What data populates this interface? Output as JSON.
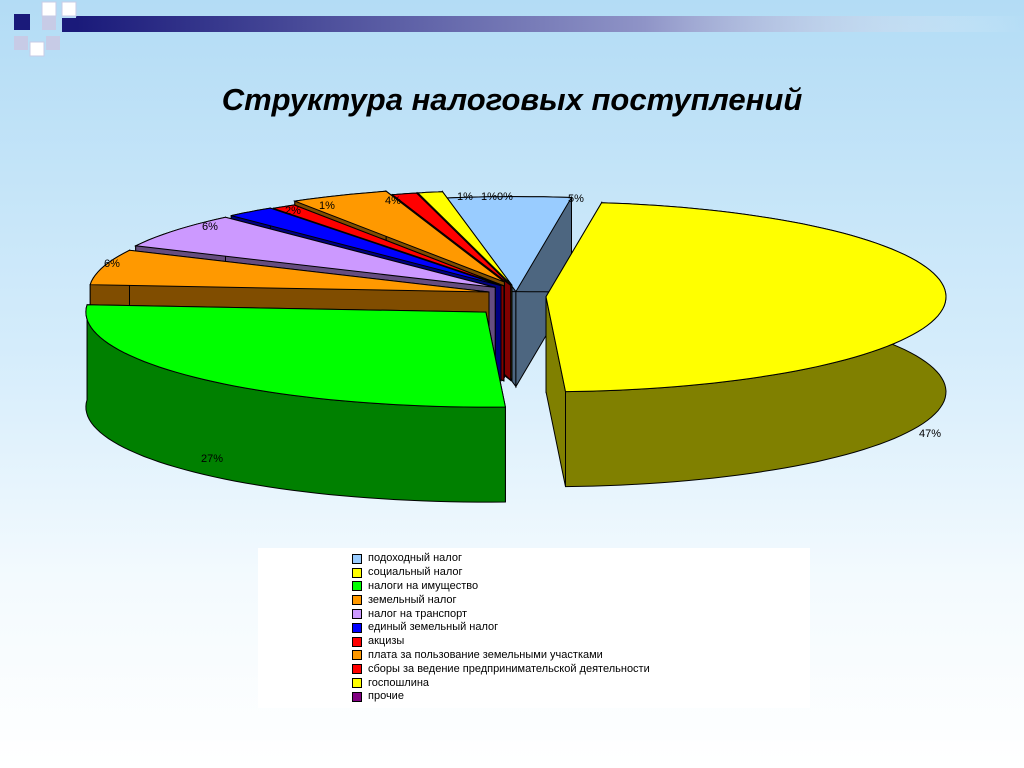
{
  "slide": {
    "title": "Структура налоговых поступлений"
  },
  "chart_data": {
    "type": "pie",
    "title": "Структура налоговых поступлений",
    "three_d": true,
    "exploded": true,
    "legend_position": "bottom",
    "slices": [
      {
        "label": "подоходный налог",
        "value": 5,
        "display": "5%",
        "color": "#99ccff"
      },
      {
        "label": "социальный налог",
        "value": 47,
        "display": "47%",
        "color": "#ffff00"
      },
      {
        "label": "налоги на имущество",
        "value": 27,
        "display": "27%",
        "color": "#00ff00"
      },
      {
        "label": "земельный налог",
        "value": 6,
        "display": "6%",
        "color": "#ff9900"
      },
      {
        "label": "налог на транспорт",
        "value": 6,
        "display": "6%",
        "color": "#cc99ff"
      },
      {
        "label": "единый земельный налог",
        "value": 2,
        "display": "2%",
        "color": "#0000ff"
      },
      {
        "label": "акцизы",
        "value": 1,
        "display": "1%",
        "color": "#ff0000"
      },
      {
        "label": "плата за пользование земельными участками",
        "value": 4,
        "display": "4%",
        "color": "#ff9900"
      },
      {
        "label": "сборы за ведение предпринимательской деятельности",
        "value": 1,
        "display": "1%",
        "color": "#ff0000"
      },
      {
        "label": "госпошлина",
        "value": 1,
        "display": "1%",
        "color": "#ffff00"
      },
      {
        "label": "прочие",
        "value": 0,
        "display": "0%",
        "color": "#800080"
      }
    ]
  }
}
